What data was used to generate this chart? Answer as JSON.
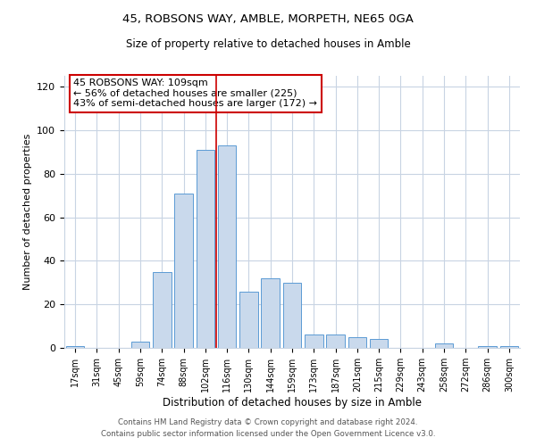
{
  "title": "45, ROBSONS WAY, AMBLE, MORPETH, NE65 0GA",
  "subtitle": "Size of property relative to detached houses in Amble",
  "xlabel": "Distribution of detached houses by size in Amble",
  "ylabel": "Number of detached properties",
  "bar_labels": [
    "17sqm",
    "31sqm",
    "45sqm",
    "59sqm",
    "74sqm",
    "88sqm",
    "102sqm",
    "116sqm",
    "130sqm",
    "144sqm",
    "159sqm",
    "173sqm",
    "187sqm",
    "201sqm",
    "215sqm",
    "229sqm",
    "243sqm",
    "258sqm",
    "272sqm",
    "286sqm",
    "300sqm"
  ],
  "bar_values": [
    1,
    0,
    0,
    3,
    35,
    71,
    91,
    93,
    26,
    32,
    30,
    6,
    6,
    5,
    4,
    0,
    0,
    2,
    0,
    1,
    1
  ],
  "bar_color": "#c9d9ec",
  "bar_edge_color": "#5b9bd5",
  "ylim": [
    0,
    125
  ],
  "yticks": [
    0,
    20,
    40,
    60,
    80,
    100,
    120
  ],
  "vline_x": 6.5,
  "vline_color": "#cc0000",
  "annotation_title": "45 ROBSONS WAY: 109sqm",
  "annotation_line1": "← 56% of detached houses are smaller (225)",
  "annotation_line2": "43% of semi-detached houses are larger (172) →",
  "annotation_box_color": "#ffffff",
  "annotation_box_edge": "#cc0000",
  "footer1": "Contains HM Land Registry data © Crown copyright and database right 2024.",
  "footer2": "Contains public sector information licensed under the Open Government Licence v3.0.",
  "background_color": "#ffffff",
  "grid_color": "#c8d4e3"
}
